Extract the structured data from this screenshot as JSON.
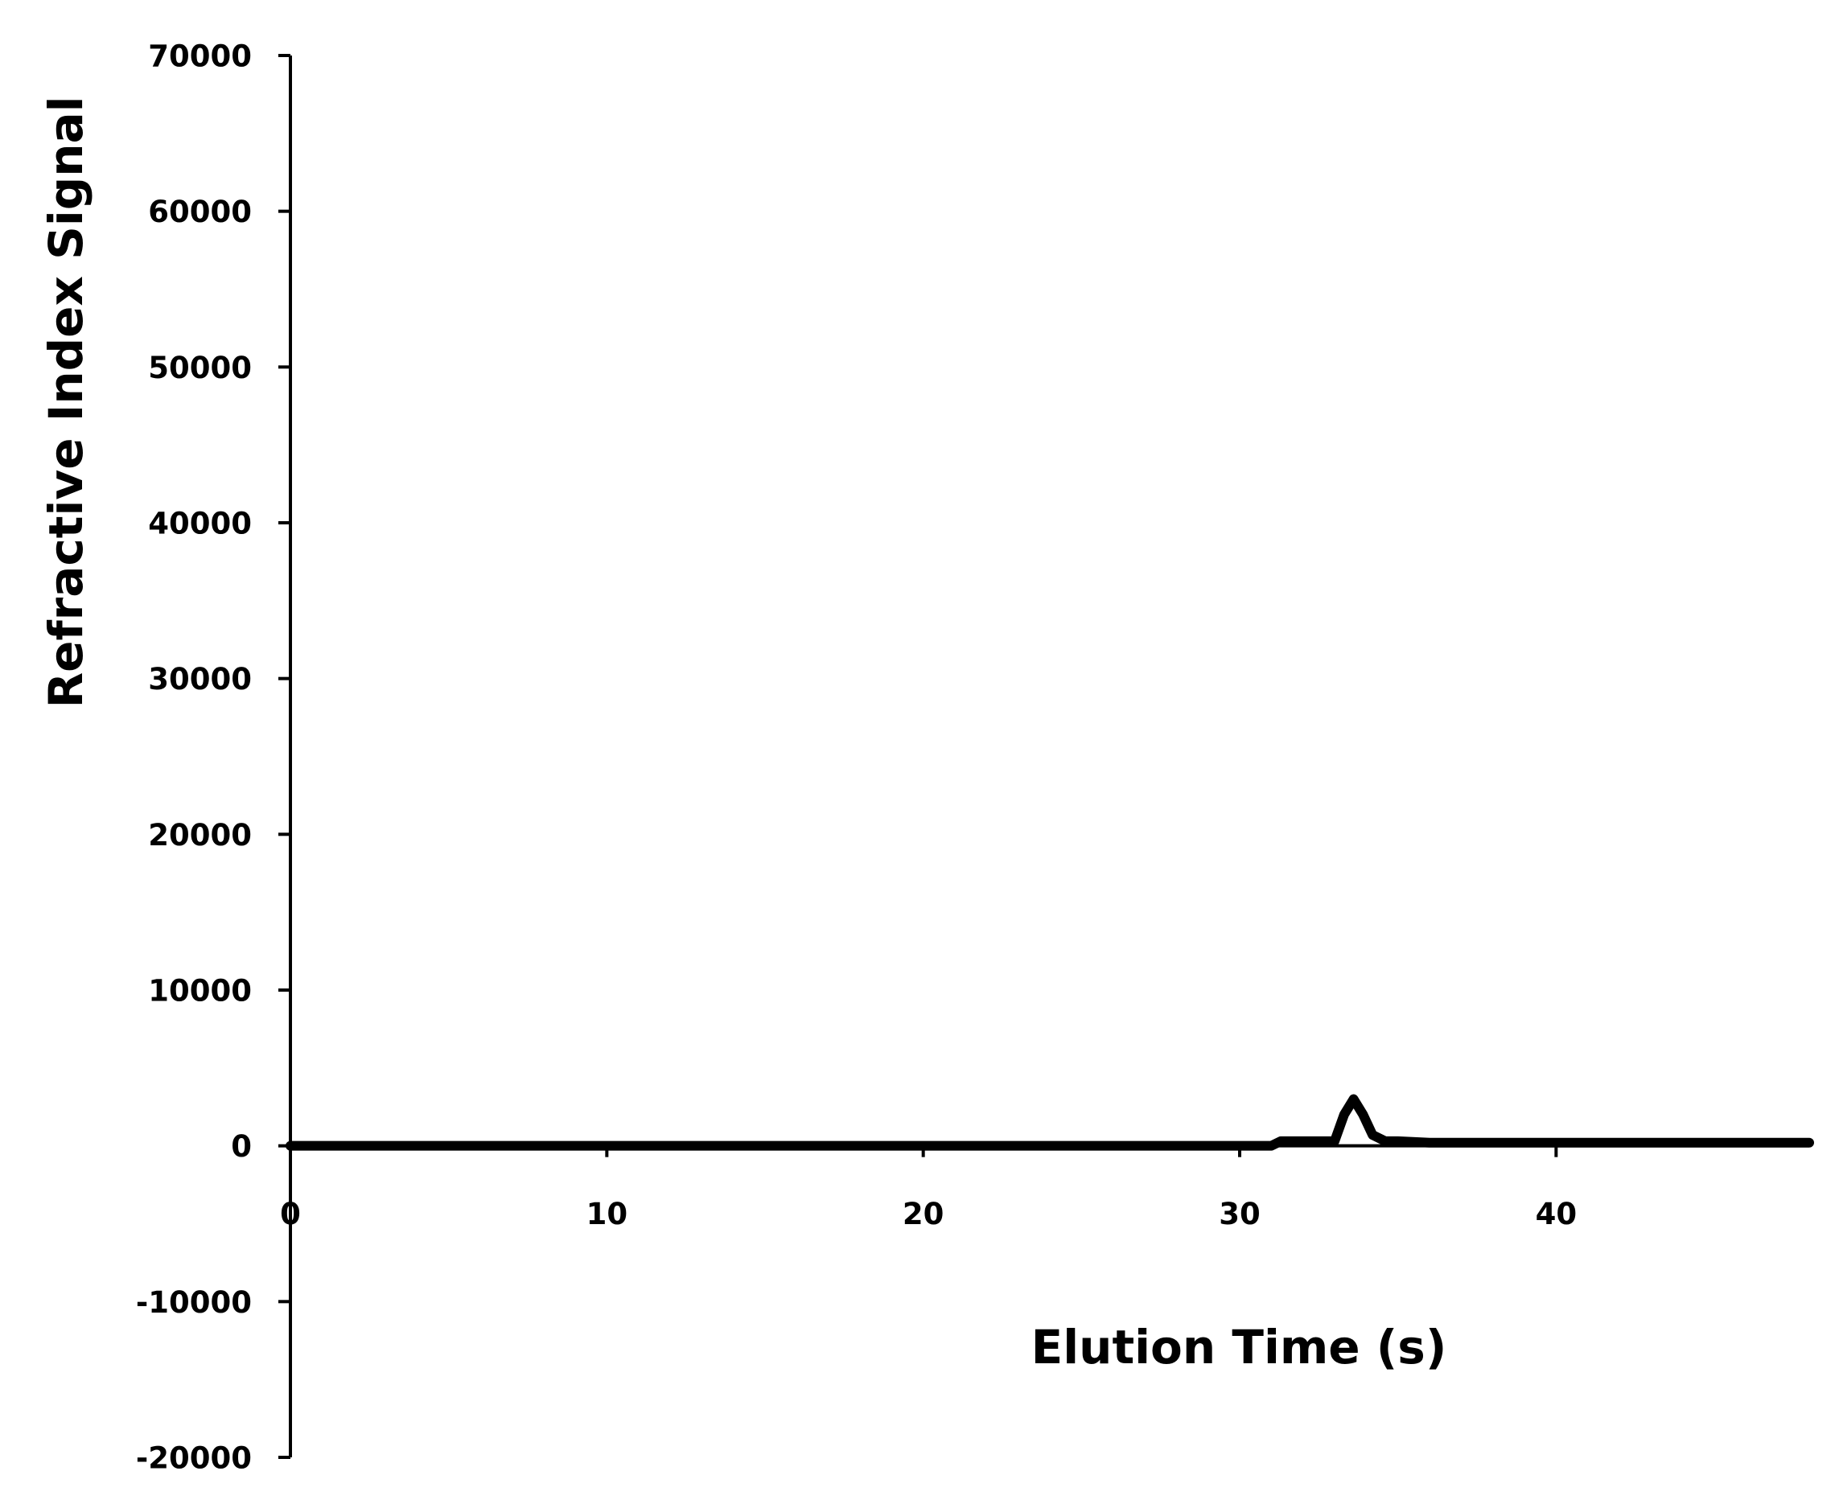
{
  "chart_data": {
    "type": "line",
    "x_label": "Elution Time (s)",
    "y_label": "Refractive Index Signal",
    "series": [
      {
        "color": "#000000",
        "x": [
          0,
          31,
          31.3,
          33,
          33.3,
          33.6,
          33.9,
          34.2,
          34.6,
          35,
          36,
          48
        ],
        "values": [
          0,
          0,
          300,
          300,
          2000,
          3000,
          2000,
          700,
          300,
          300,
          200,
          200
        ]
      }
    ],
    "xlim": [
      0,
      48
    ],
    "xticks": [
      0,
      10,
      20,
      30,
      40
    ],
    "ylim": [
      -20000,
      70000
    ],
    "yticks": [
      -20000,
      -10000,
      0,
      10000,
      20000,
      30000,
      40000,
      50000,
      60000,
      70000
    ],
    "grid": false
  }
}
